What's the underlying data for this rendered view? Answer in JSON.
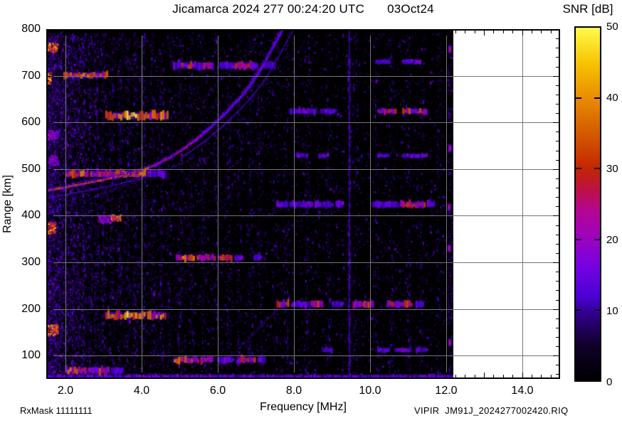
{
  "header": {
    "title_left": "Jicamarca 2024 277 00:24:20 UTC",
    "title_right": "03Oct24"
  },
  "footer": {
    "rx_mask": "RxMask 11111111",
    "source": "VIPIR  JM91J_2024277002420.RIQ"
  },
  "chart_data": {
    "type": "heatmap",
    "title": "Jicamarca 2024 277 00:24:20 UTC  03Oct24",
    "xlabel": "Frequency [MHz]",
    "ylabel": "Range [km]",
    "xlim": [
      1.5,
      15.0
    ],
    "ylim": [
      50,
      800
    ],
    "data_xmax": 12.2,
    "grid": true,
    "background": "#000000",
    "x_ticks": [
      {
        "v": 2,
        "label": "2.0"
      },
      {
        "v": 4,
        "label": "4.0"
      },
      {
        "v": 6,
        "label": "6.0"
      },
      {
        "v": 8,
        "label": "8.0"
      },
      {
        "v": 10,
        "label": "10.0"
      },
      {
        "v": 12,
        "label": "12.0"
      },
      {
        "v": 14,
        "label": "14.0"
      }
    ],
    "y_ticks": [
      {
        "v": 100,
        "label": "100"
      },
      {
        "v": 200,
        "label": "200"
      },
      {
        "v": 300,
        "label": "300"
      },
      {
        "v": 400,
        "label": "400"
      },
      {
        "v": 500,
        "label": "500"
      },
      {
        "v": 600,
        "label": "600"
      },
      {
        "v": 700,
        "label": "700"
      },
      {
        "v": 800,
        "label": "800"
      }
    ],
    "colorbar": {
      "label": "SNR [dB]",
      "min": 0,
      "max": 50,
      "ticks": [
        {
          "v": 0,
          "label": "0"
        },
        {
          "v": 10,
          "label": "10"
        },
        {
          "v": 20,
          "label": "20"
        },
        {
          "v": 30,
          "label": "30"
        },
        {
          "v": 40,
          "label": "40"
        },
        {
          "v": 50,
          "label": "50"
        }
      ],
      "stops": [
        [
          0,
          "#000000"
        ],
        [
          5,
          "#10002a"
        ],
        [
          9,
          "#2e0080"
        ],
        [
          12,
          "#4b01d6"
        ],
        [
          16,
          "#7302e2"
        ],
        [
          20,
          "#9b03c0"
        ],
        [
          24,
          "#b30693"
        ],
        [
          27,
          "#bd1145"
        ],
        [
          30,
          "#c32503"
        ],
        [
          35,
          "#d45a00"
        ],
        [
          40,
          "#e98c00"
        ],
        [
          45,
          "#f7c400"
        ],
        [
          50,
          "#fffb4d"
        ]
      ]
    },
    "trace_o_mode": [
      [
        1.5,
        454
      ],
      [
        2.0,
        461
      ],
      [
        2.5,
        469
      ],
      [
        3.0,
        477
      ],
      [
        3.5,
        486
      ],
      [
        4.0,
        497
      ],
      [
        4.4,
        510
      ],
      [
        4.8,
        527
      ],
      [
        5.1,
        543
      ],
      [
        5.4,
        561
      ],
      [
        5.7,
        581
      ],
      [
        6.0,
        603
      ],
      [
        6.3,
        627
      ],
      [
        6.6,
        653
      ],
      [
        6.9,
        684
      ],
      [
        7.15,
        716
      ],
      [
        7.4,
        752
      ],
      [
        7.58,
        780
      ],
      [
        7.72,
        800
      ]
    ],
    "trace_x_mode_offset_mhz": 0.28,
    "strong_line_mhz": 9.45,
    "noise_stripes": [
      [
        1.53,
        0.95
      ],
      [
        1.62,
        0.95
      ],
      [
        1.74,
        0.9
      ],
      [
        1.88,
        0.85
      ],
      [
        2.02,
        0.85
      ],
      [
        2.18,
        0.7
      ],
      [
        2.32,
        0.65
      ],
      [
        2.48,
        0.7
      ],
      [
        2.64,
        0.6
      ],
      [
        2.8,
        0.65
      ],
      [
        2.98,
        0.6
      ],
      [
        3.2,
        0.55
      ],
      [
        3.42,
        0.6
      ],
      [
        3.62,
        0.5
      ],
      [
        3.82,
        0.5
      ],
      [
        4.05,
        0.5
      ],
      [
        4.28,
        0.4
      ],
      [
        4.52,
        0.45
      ],
      [
        4.72,
        0.4
      ],
      [
        5.0,
        0.4
      ],
      [
        5.3,
        0.35
      ],
      [
        5.62,
        0.35
      ],
      [
        5.95,
        0.3
      ],
      [
        6.28,
        0.35
      ],
      [
        6.55,
        0.3
      ],
      [
        6.85,
        0.3
      ],
      [
        7.12,
        0.3
      ],
      [
        7.5,
        0.25
      ],
      [
        7.8,
        0.25
      ],
      [
        8.35,
        0.3
      ],
      [
        8.9,
        0.25
      ],
      [
        9.6,
        0.3
      ],
      [
        10.15,
        0.35
      ],
      [
        10.55,
        0.3
      ],
      [
        11.0,
        0.3
      ],
      [
        11.35,
        0.25
      ],
      [
        11.8,
        0.2
      ],
      [
        12.1,
        0.45
      ]
    ],
    "rfi_bands": [
      {
        "km": 54,
        "h": 6,
        "segments": [
          {
            "f": [
              1.5,
              12.18
            ],
            "c": "p"
          }
        ]
      },
      {
        "km": 722,
        "h": 9,
        "segments": [
          {
            "f": [
              4.83,
              5.05
            ],
            "c": "p"
          },
          {
            "f": [
              5.05,
              5.38
            ],
            "c": "r"
          },
          {
            "f": [
              5.38,
              5.62
            ],
            "c": "p"
          },
          {
            "f": [
              5.62,
              5.9
            ],
            "c": "r"
          },
          {
            "f": [
              6.05,
              6.45
            ],
            "c": "p"
          },
          {
            "f": [
              6.45,
              6.85
            ],
            "c": "r"
          },
          {
            "f": [
              6.85,
              7.02
            ],
            "c": "p"
          },
          {
            "f": [
              7.2,
              7.5
            ],
            "c": "p"
          }
        ]
      },
      {
        "km": 730,
        "h": 6,
        "segments": [
          {
            "f": [
              10.15,
              10.5
            ],
            "c": "p"
          },
          {
            "f": [
              10.85,
              11.3
            ],
            "c": "p"
          }
        ]
      },
      {
        "km": 701,
        "h": 8,
        "segments": [
          {
            "f": [
              1.95,
              3.1
            ],
            "c": "o"
          }
        ]
      },
      {
        "km": 614,
        "h": 10,
        "segments": [
          {
            "f": [
              3.05,
              3.55
            ],
            "c": "o"
          },
          {
            "f": [
              3.55,
              4.1
            ],
            "c": "y"
          },
          {
            "f": [
              4.1,
              4.68
            ],
            "c": "o"
          }
        ]
      },
      {
        "km": 624,
        "h": 7,
        "segments": [
          {
            "f": [
              7.9,
              8.6
            ],
            "c": "p"
          },
          {
            "f": [
              8.7,
              9.1
            ],
            "c": "p"
          },
          {
            "f": [
              10.2,
              10.7
            ],
            "c": "r"
          },
          {
            "f": [
              10.85,
              11.5
            ],
            "c": "r"
          }
        ]
      },
      {
        "km": 529,
        "h": 5,
        "segments": [
          {
            "f": [
              8.05,
              8.35
            ],
            "c": "p"
          },
          {
            "f": [
              8.65,
              8.9
            ],
            "c": "p"
          },
          {
            "f": [
              10.2,
              10.5
            ],
            "c": "p"
          },
          {
            "f": [
              10.85,
              11.5
            ],
            "c": "p"
          }
        ]
      },
      {
        "km": 490,
        "h": 9,
        "segments": [
          {
            "f": [
              2.0,
              2.6
            ],
            "c": "o"
          },
          {
            "f": [
              2.65,
              3.4
            ],
            "c": "r"
          },
          {
            "f": [
              3.45,
              4.1
            ],
            "c": "o"
          },
          {
            "f": [
              4.15,
              4.65
            ],
            "c": "p"
          }
        ]
      },
      {
        "km": 424,
        "h": 8,
        "segments": [
          {
            "f": [
              7.55,
              7.85
            ],
            "c": "p"
          },
          {
            "f": [
              7.9,
              8.5
            ],
            "c": "p"
          },
          {
            "f": [
              8.55,
              9.0
            ],
            "c": "p"
          },
          {
            "f": [
              9.1,
              9.3
            ],
            "c": "p"
          },
          {
            "f": [
              10.05,
              10.75
            ],
            "c": "p"
          },
          {
            "f": [
              10.8,
              11.45
            ],
            "c": "r"
          },
          {
            "f": [
              11.5,
              11.7
            ],
            "c": "p"
          }
        ]
      },
      {
        "km": 310,
        "h": 8,
        "segments": [
          {
            "f": [
              4.9,
              5.4
            ],
            "c": "o"
          },
          {
            "f": [
              5.45,
              5.9
            ],
            "c": "r"
          },
          {
            "f": [
              6.0,
              6.35
            ],
            "c": "r"
          },
          {
            "f": [
              6.45,
              6.65
            ],
            "c": "p"
          },
          {
            "f": [
              6.95,
              7.15
            ],
            "c": "p"
          }
        ]
      },
      {
        "km": 210,
        "h": 8,
        "segments": [
          {
            "f": [
              7.55,
              7.85
            ],
            "c": "r"
          },
          {
            "f": [
              7.95,
              8.4
            ],
            "c": "p"
          },
          {
            "f": [
              8.45,
              8.75
            ],
            "c": "r"
          },
          {
            "f": [
              9.0,
              9.3
            ],
            "c": "p"
          },
          {
            "f": [
              9.55,
              10.1
            ],
            "c": "r"
          },
          {
            "f": [
              10.45,
              11.1
            ],
            "c": "r"
          },
          {
            "f": [
              11.2,
              11.4
            ],
            "c": "p"
          }
        ]
      },
      {
        "km": 186,
        "h": 10,
        "segments": [
          {
            "f": [
              3.05,
              3.5
            ],
            "c": "o"
          },
          {
            "f": [
              3.55,
              4.1
            ],
            "c": "y"
          },
          {
            "f": [
              4.15,
              4.6
            ],
            "c": "o"
          }
        ]
      },
      {
        "km": 112,
        "h": 6,
        "segments": [
          {
            "f": [
              8.75,
              9.0
            ],
            "c": "p"
          },
          {
            "f": [
              10.2,
              10.5
            ],
            "c": "p"
          },
          {
            "f": [
              10.65,
              11.05
            ],
            "c": "p"
          },
          {
            "f": [
              11.2,
              11.5
            ],
            "c": "p"
          }
        ]
      },
      {
        "km": 91,
        "h": 8,
        "segments": [
          {
            "f": [
              4.85,
              5.5
            ],
            "c": "o"
          },
          {
            "f": [
              5.55,
              5.85
            ],
            "c": "r"
          },
          {
            "f": [
              6.0,
              6.4
            ],
            "c": "p"
          },
          {
            "f": [
              6.5,
              6.95
            ],
            "c": "r"
          },
          {
            "f": [
              7.05,
              7.25
            ],
            "c": "p"
          }
        ]
      },
      {
        "km": 68,
        "h": 9,
        "segments": [
          {
            "f": [
              2.0,
              2.55
            ],
            "c": "o"
          },
          {
            "f": [
              2.6,
              3.15
            ],
            "c": "r"
          },
          {
            "f": [
              3.2,
              3.5
            ],
            "c": "p"
          }
        ]
      }
    ],
    "echo_blobs": [
      {
        "f": [
          1.5,
          1.72
        ],
        "km": [
          362,
          388
        ],
        "hot": true
      },
      {
        "f": [
          1.5,
          1.8
        ],
        "km": [
          145,
          168
        ],
        "hot": true
      },
      {
        "f": [
          1.5,
          1.62
        ],
        "km": [
          686,
          708
        ],
        "hot": true
      },
      {
        "f": [
          1.5,
          1.78
        ],
        "km": [
          752,
          772
        ],
        "hot": true
      },
      {
        "f": [
          1.55,
          1.8
        ],
        "km": [
          510,
          530
        ],
        "hot": false
      },
      {
        "f": [
          1.5,
          1.8
        ],
        "km": [
          565,
          585
        ],
        "hot": false
      },
      {
        "f": [
          2.85,
          3.2
        ],
        "km": [
          386,
          402
        ],
        "hot": false
      },
      {
        "f": [
          3.2,
          3.45
        ],
        "km": [
          390,
          404
        ],
        "hot": true
      }
    ],
    "streaks": [
      {
        "p0": [
          2.45,
          432
        ],
        "p1": [
          5.1,
          515
        ],
        "a": 0.5
      },
      {
        "p0": [
          6.3,
          96
        ],
        "p1": [
          7.72,
          214
        ],
        "a": 0.45
      },
      {
        "p0": [
          2.35,
          210
        ],
        "p1": [
          4.7,
          277
        ],
        "a": 0.35
      },
      {
        "p0": [
          3.1,
          148
        ],
        "p1": [
          4.65,
          242
        ],
        "a": 0.3
      }
    ],
    "edge_echoes": [
      {
        "f": 12.1,
        "km": 757
      },
      {
        "f": 12.1,
        "km": 545
      },
      {
        "f": 12.08,
        "km": 330
      },
      {
        "f": 12.1,
        "km": 128
      },
      {
        "f": 12.08,
        "km": 418
      }
    ]
  }
}
